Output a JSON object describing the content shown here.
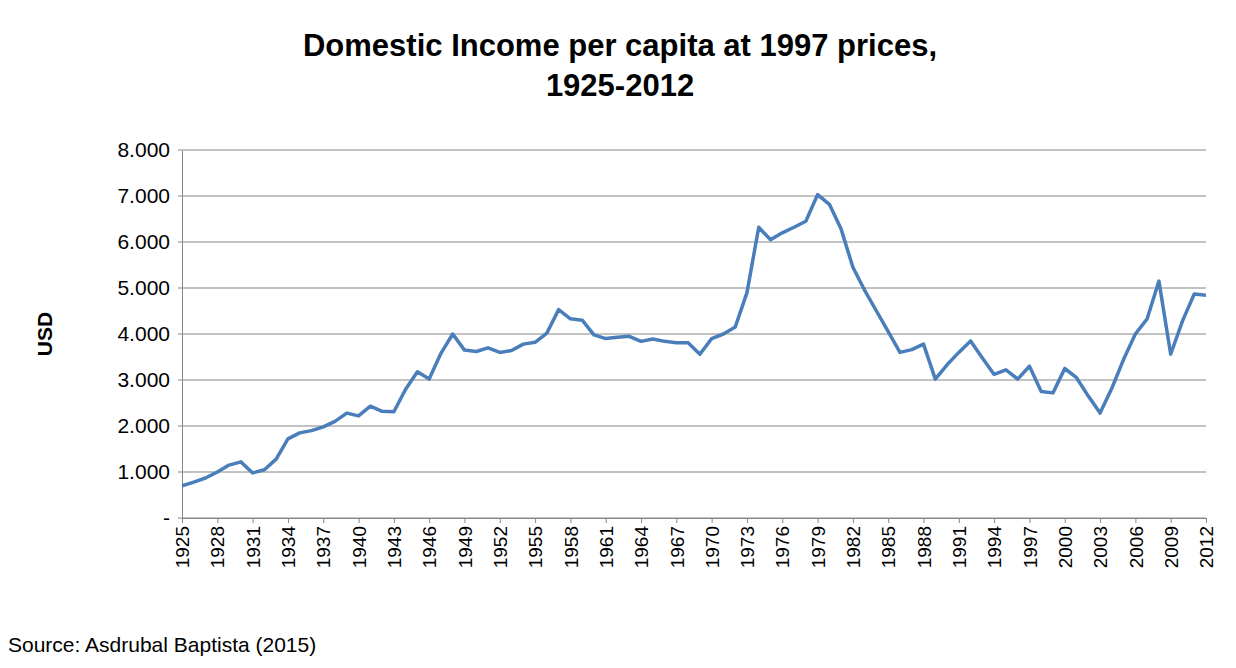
{
  "chart_data": {
    "type": "line",
    "title": "Domestic Income per capita at 1997 prices,\n1925-2012",
    "y_label": "USD",
    "source": "Source: Asdrubal Baptista (2015)",
    "color": "#4a7ebb",
    "grid": true,
    "x": [
      1925,
      1926,
      1927,
      1928,
      1929,
      1930,
      1931,
      1932,
      1933,
      1934,
      1935,
      1936,
      1937,
      1938,
      1939,
      1940,
      1941,
      1942,
      1943,
      1944,
      1945,
      1946,
      1947,
      1948,
      1949,
      1950,
      1951,
      1952,
      1953,
      1954,
      1955,
      1956,
      1957,
      1958,
      1959,
      1960,
      1961,
      1962,
      1963,
      1964,
      1965,
      1966,
      1967,
      1968,
      1969,
      1970,
      1971,
      1972,
      1973,
      1974,
      1975,
      1976,
      1977,
      1978,
      1979,
      1980,
      1981,
      1982,
      1983,
      1984,
      1985,
      1986,
      1987,
      1988,
      1989,
      1990,
      1991,
      1992,
      1993,
      1994,
      1995,
      1996,
      1997,
      1998,
      1999,
      2000,
      2001,
      2002,
      2003,
      2004,
      2005,
      2006,
      2007,
      2008,
      2009,
      2010,
      2011,
      2012
    ],
    "values": [
      700,
      780,
      870,
      1000,
      1150,
      1220,
      980,
      1050,
      1280,
      1720,
      1850,
      1900,
      1980,
      2100,
      2280,
      2220,
      2430,
      2320,
      2310,
      2800,
      3180,
      3020,
      3580,
      4000,
      3650,
      3620,
      3700,
      3600,
      3640,
      3780,
      3820,
      4020,
      4530,
      4330,
      4300,
      3980,
      3900,
      3930,
      3950,
      3840,
      3890,
      3840,
      3810,
      3810,
      3560,
      3900,
      4000,
      4150,
      4900,
      6320,
      6050,
      6200,
      6320,
      6450,
      7030,
      6820,
      6280,
      5450,
      4950,
      4500,
      4050,
      3600,
      3660,
      3780,
      3020,
      3330,
      3600,
      3850,
      3480,
      3120,
      3220,
      3020,
      3300,
      2750,
      2720,
      3250,
      3050,
      2650,
      2280,
      2820,
      3450,
      4000,
      4330,
      5150,
      3560,
      4280,
      4870,
      4840
    ],
    "xlim": [
      1925,
      2012
    ],
    "xticks": [
      1925,
      1928,
      1931,
      1934,
      1937,
      1940,
      1943,
      1946,
      1949,
      1952,
      1955,
      1958,
      1961,
      1964,
      1967,
      1970,
      1973,
      1976,
      1979,
      1982,
      1985,
      1988,
      1991,
      1994,
      1997,
      2000,
      2003,
      2006,
      2009,
      2012
    ],
    "ylim": [
      0,
      8000
    ],
    "yticks": [
      {
        "value": 0,
        "label": "-"
      },
      {
        "value": 1000,
        "label": "1.000"
      },
      {
        "value": 2000,
        "label": "2.000"
      },
      {
        "value": 3000,
        "label": "3.000"
      },
      {
        "value": 4000,
        "label": "4.000"
      },
      {
        "value": 5000,
        "label": "5.000"
      },
      {
        "value": 6000,
        "label": "6.000"
      },
      {
        "value": 7000,
        "label": "7.000"
      },
      {
        "value": 8000,
        "label": "8.000"
      }
    ]
  }
}
